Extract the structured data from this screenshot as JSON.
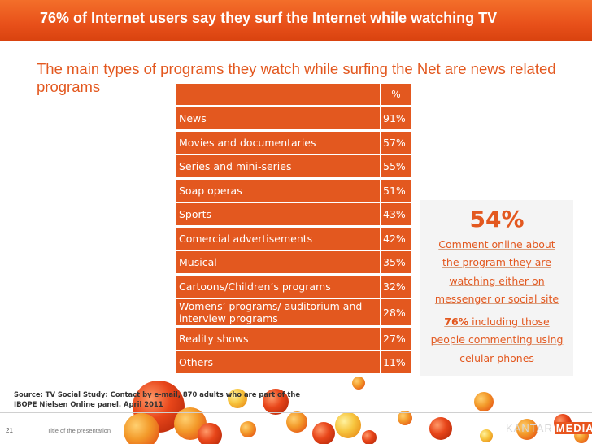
{
  "banner": {
    "title": "76% of Internet users say they surf the Internet while watching TV"
  },
  "subtitle": "The main types of programs they watch while surfing the Net are news related programs",
  "table": {
    "pct_header": "%",
    "rows": [
      {
        "label": "News",
        "value": "91%"
      },
      {
        "label": "Movies and documentaries",
        "value": "57%"
      },
      {
        "label": "Series and mini-series",
        "value": "55%"
      },
      {
        "label": "Soap operas",
        "value": "51%"
      },
      {
        "label": "Sports",
        "value": "43%"
      },
      {
        "label": "Comercial advertisements",
        "value": "42%"
      },
      {
        "label": "Musical",
        "value": "35%"
      },
      {
        "label": "Cartoons/Children’s programs",
        "value": "32%"
      },
      {
        "label": "Womens’ programs/ auditorium and interview programs",
        "value": "28%"
      },
      {
        "label": "Reality shows",
        "value": "27%"
      },
      {
        "label": "Others",
        "value": "11%"
      }
    ]
  },
  "sidebox": {
    "big_stat": "54%",
    "lines": [
      "Comment online about",
      "the program they are",
      "watching either on",
      "messenger or social site"
    ],
    "bold_stat": "76%",
    "lines2": [
      " including those",
      "people commenting using",
      "celular phones"
    ]
  },
  "source": "Source: TV Social Study: Contact by e-mail, 870 adults who are part of the IBOPE Nielsen Online panel. April 2011",
  "footer": {
    "page_number": "21",
    "presentation_title": "Title of the presentation",
    "logo_kantar": "KANTAR",
    "logo_media": "MEDIA"
  },
  "colors": {
    "accent": "#e3581f",
    "banner": "#e8501a",
    "sidebox_bg": "#f4f4f4"
  }
}
